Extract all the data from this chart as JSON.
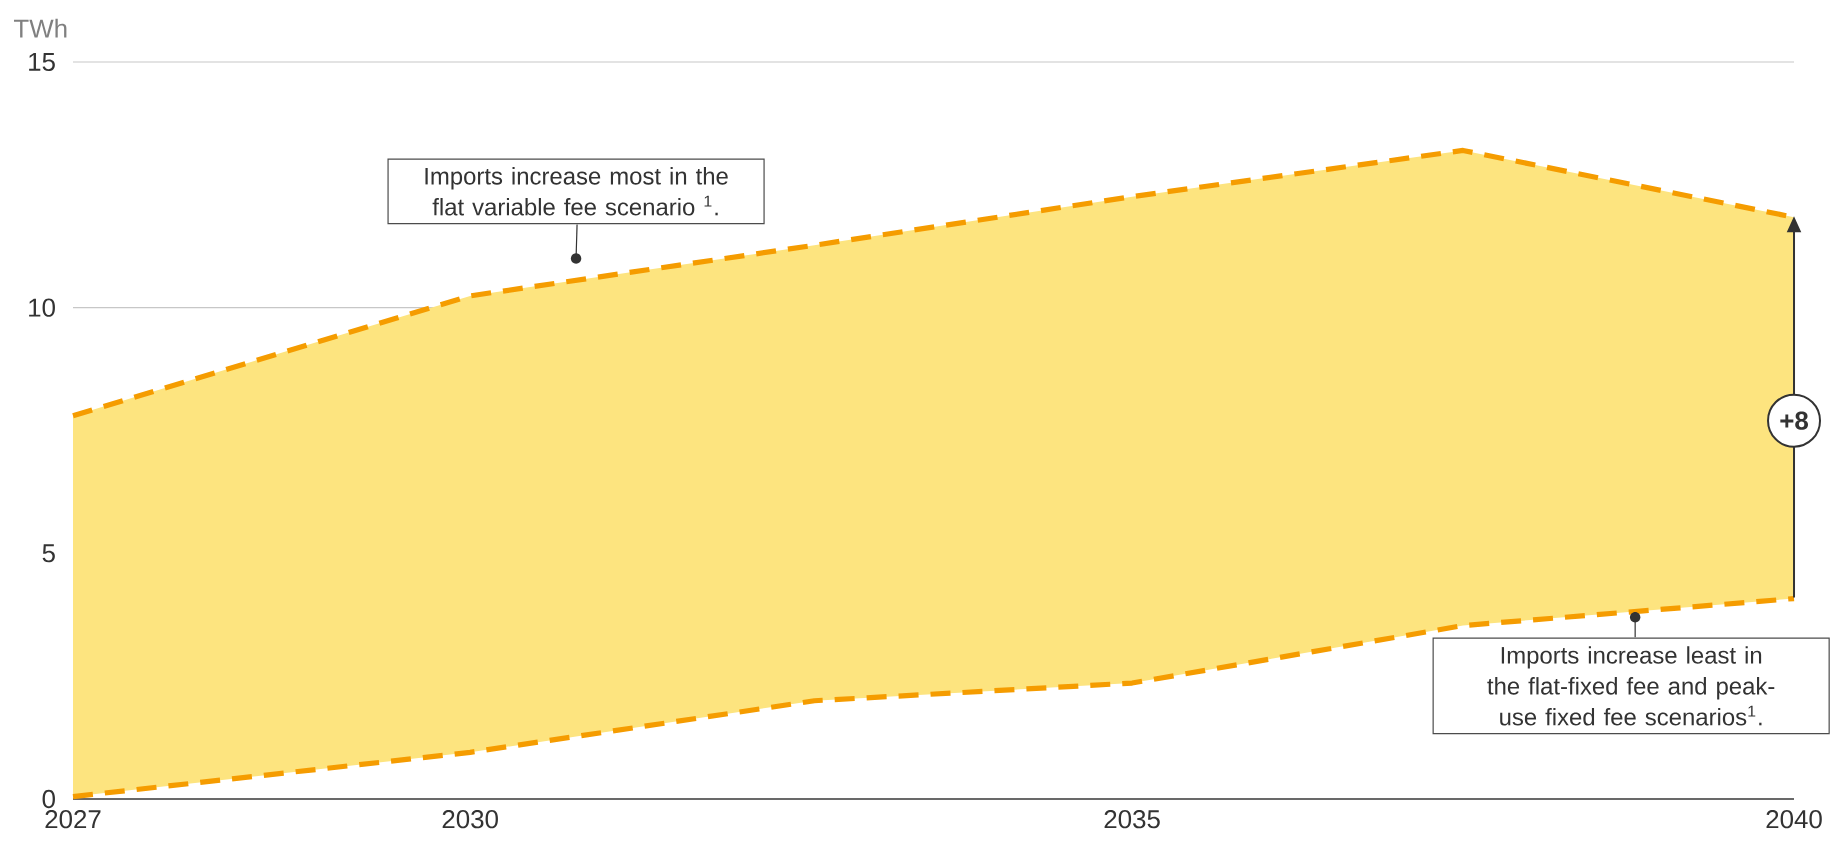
{
  "chart_data": {
    "type": "line",
    "ylabel": "TWh",
    "xlim": [
      2027,
      2040
    ],
    "xticks": [
      2027,
      2030,
      2035,
      2040
    ],
    "ylim": [
      0,
      15
    ],
    "yticks": [
      0,
      5,
      10,
      15
    ],
    "grid": "y",
    "marker": "none",
    "line_style": "dashed",
    "series": [
      {
        "color": "#f59c00",
        "x": [
          2027,
          2030,
          2032.6,
          2035,
          2037.5,
          2040
        ],
        "values": [
          7.8,
          10.24,
          11.27,
          12.26,
          13.2,
          11.84
        ],
        "lower": [
          0.05,
          0.95,
          2.0,
          2.36,
          3.53,
          4.08
        ],
        "upper": [
          7.8,
          10.24,
          11.27,
          12.26,
          13.2,
          11.84
        ]
      },
      {
        "color": "#f59c00",
        "x": [
          2027,
          2030,
          2032.6,
          2035,
          2037.5,
          2040
        ],
        "values": [
          0.05,
          0.95,
          2.0,
          2.36,
          3.53,
          4.08
        ]
      }
    ],
    "annotations": [
      {
        "text": "Imports increase most in the flat variable fee scenario $^{1}$.",
        "x": 2030.8,
        "y": 11.0
      },
      {
        "text": "Imports increase least in the flat-fixed fee and peak-use fixed fee scenarios$^{1}$.",
        "x": 2038.8,
        "y": 3.7
      },
      {
        "text": "+8",
        "x": 2040,
        "y": 7.7
      }
    ]
  }
}
